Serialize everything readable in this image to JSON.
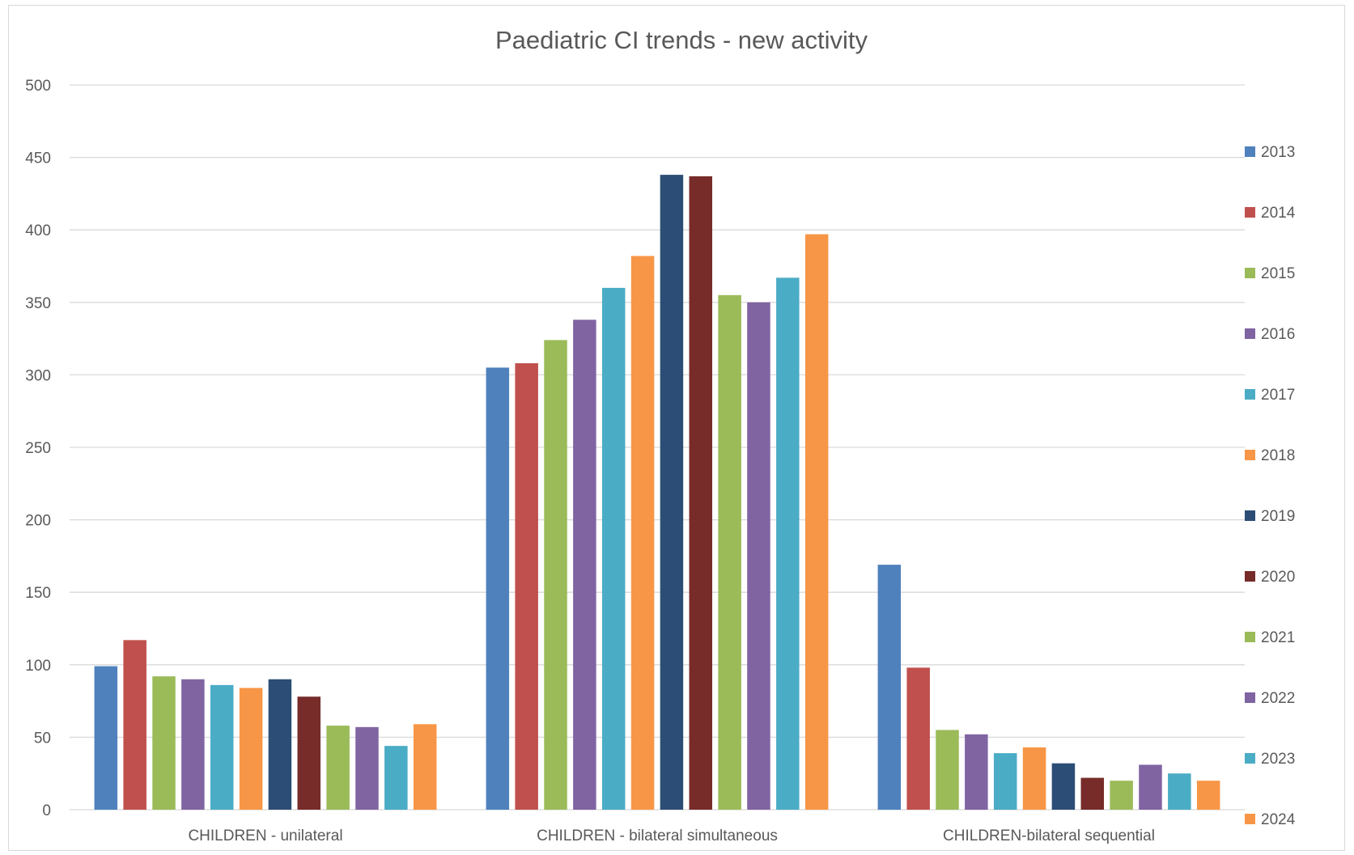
{
  "chart_data": {
    "type": "bar",
    "title": "Paediatric CI trends - new activity",
    "xlabel": "",
    "ylabel": "",
    "ylim": [
      0,
      500
    ],
    "yticks": [
      0,
      50,
      100,
      150,
      200,
      250,
      300,
      350,
      400,
      450,
      500
    ],
    "grid": true,
    "legend_position": "right",
    "categories": [
      "CHILDREN - unilateral",
      "CHILDREN - bilateral simultaneous",
      "CHILDREN-bilateral sequential"
    ],
    "series": [
      {
        "name": "2013",
        "color": "#4f81bd",
        "values": [
          99,
          305,
          169
        ]
      },
      {
        "name": "2014",
        "color": "#c0504d",
        "values": [
          117,
          308,
          98
        ]
      },
      {
        "name": "2015",
        "color": "#9bbb59",
        "values": [
          92,
          324,
          55
        ]
      },
      {
        "name": "2016",
        "color": "#8064a2",
        "values": [
          90,
          338,
          52
        ]
      },
      {
        "name": "2017",
        "color": "#4bacc6",
        "values": [
          86,
          360,
          39
        ]
      },
      {
        "name": "2018",
        "color": "#f79646",
        "values": [
          84,
          382,
          43
        ]
      },
      {
        "name": "2019",
        "color": "#2c4d75",
        "values": [
          90,
          438,
          32
        ]
      },
      {
        "name": "2020",
        "color": "#772c2a",
        "values": [
          78,
          437,
          22
        ]
      },
      {
        "name": "2021",
        "color": "#9bbb59",
        "values": [
          58,
          355,
          20
        ]
      },
      {
        "name": "2022",
        "color": "#8064a2",
        "values": [
          57,
          350,
          31
        ]
      },
      {
        "name": "2023",
        "color": "#4bacc6",
        "values": [
          44,
          367,
          25
        ]
      },
      {
        "name": "2024",
        "color": "#f79646",
        "values": [
          59,
          397,
          20
        ]
      }
    ]
  }
}
